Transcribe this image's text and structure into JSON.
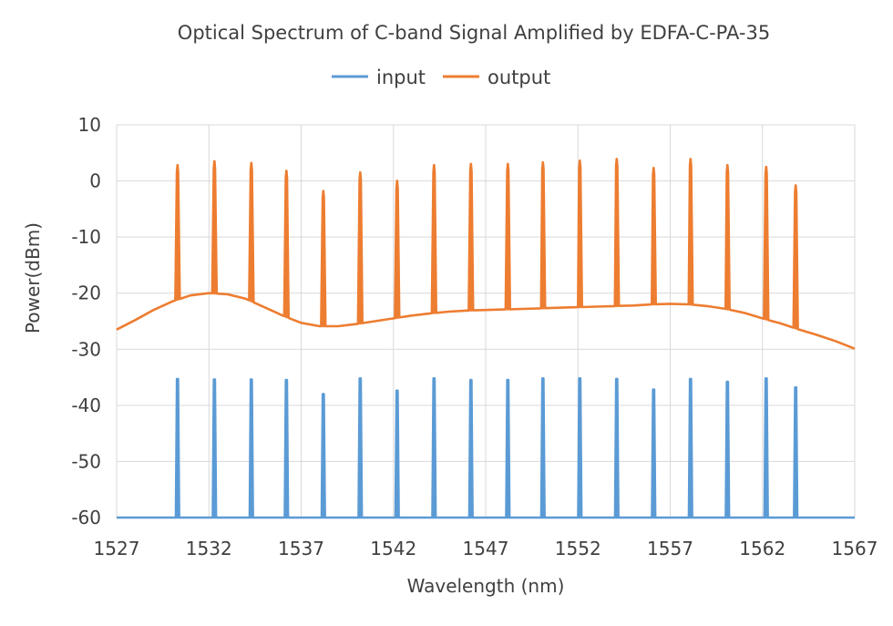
{
  "chart_data": {
    "type": "line",
    "title": "Optical Spectrum of C-band Signal Amplified by EDFA-C-PA-35",
    "xlabel": "Wavelength (nm)",
    "ylabel": "Power(dBm)",
    "xlim": [
      1527,
      1567
    ],
    "ylim": [
      -60,
      10
    ],
    "xticks": [
      1527,
      1532,
      1537,
      1542,
      1547,
      1552,
      1557,
      1562,
      1567
    ],
    "yticks": [
      10,
      0,
      -10,
      -20,
      -30,
      -40,
      -50,
      -60
    ],
    "grid": true,
    "legend_position": "top",
    "channels_nm": [
      1530.3,
      1532.3,
      1534.3,
      1536.2,
      1538.2,
      1540.2,
      1542.2,
      1544.2,
      1546.2,
      1548.2,
      1550.1,
      1552.1,
      1554.1,
      1556.1,
      1558.1,
      1560.1,
      1562.2,
      1563.8
    ],
    "series": [
      {
        "name": "input",
        "color": "#5B9BD5",
        "floor_dbm": -60,
        "peaks_dbm": [
          -35.3,
          -35.4,
          -35.4,
          -35.5,
          -38.0,
          -35.2,
          -37.4,
          -35.2,
          -35.5,
          -35.5,
          -35.2,
          -35.2,
          -35.3,
          -37.2,
          -35.3,
          -35.8,
          -35.2,
          -36.8
        ]
      },
      {
        "name": "output",
        "color": "#ED7D31",
        "baseline": {
          "x": [
            1527,
            1528,
            1529,
            1530,
            1531,
            1532,
            1533,
            1534,
            1535,
            1536,
            1537,
            1538,
            1539,
            1540,
            1541,
            1542,
            1543,
            1544,
            1545,
            1546,
            1547,
            1548,
            1549,
            1550,
            1551,
            1552,
            1553,
            1554,
            1555,
            1556,
            1557,
            1558,
            1559,
            1560,
            1561,
            1562,
            1563,
            1564,
            1565,
            1566,
            1567
          ],
          "y": [
            -26.5,
            -24.8,
            -23.0,
            -21.5,
            -20.4,
            -20.0,
            -20.2,
            -21.0,
            -22.5,
            -24.0,
            -25.3,
            -25.9,
            -25.9,
            -25.5,
            -25.0,
            -24.5,
            -24.0,
            -23.6,
            -23.3,
            -23.1,
            -23.0,
            -22.9,
            -22.8,
            -22.7,
            -22.6,
            -22.5,
            -22.4,
            -22.3,
            -22.2,
            -22.0,
            -21.9,
            -22.0,
            -22.3,
            -22.8,
            -23.5,
            -24.5,
            -25.4,
            -26.5,
            -27.5,
            -28.6,
            -29.9
          ]
        },
        "peaks_dbm": [
          2.8,
          3.5,
          3.2,
          1.8,
          -1.8,
          1.5,
          0.0,
          2.8,
          3.0,
          3.0,
          3.3,
          3.6,
          3.9,
          2.3,
          3.9,
          2.8,
          2.5,
          -0.8
        ]
      }
    ]
  }
}
